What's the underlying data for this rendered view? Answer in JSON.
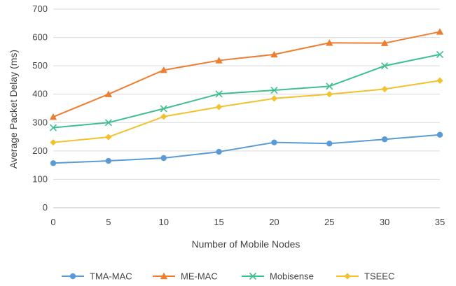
{
  "chart_data": {
    "type": "line",
    "xlabel": "Number  of Mobile Nodes",
    "ylabel": "Average Packet Delay (ms)",
    "x": [
      0,
      5,
      10,
      15,
      20,
      25,
      30,
      35
    ],
    "xlim": [
      0,
      35
    ],
    "ylim": [
      0,
      700
    ],
    "yticks": [
      0,
      100,
      200,
      300,
      400,
      500,
      600,
      700
    ],
    "grid": "horizontal",
    "legend_position": "bottom",
    "series": [
      {
        "name": "TMA-MAC",
        "color": "#5B9BD5",
        "marker": "circle",
        "values": [
          157,
          165,
          175,
          197,
          230,
          226,
          241,
          257
        ]
      },
      {
        "name": "ME-MAC",
        "color": "#ED7D31",
        "marker": "triangle",
        "values": [
          320,
          400,
          485,
          519,
          540,
          581,
          580,
          620
        ]
      },
      {
        "name": "Mobisense",
        "color": "#3DBF8E",
        "marker": "x",
        "values": [
          282,
          300,
          349,
          401,
          414,
          428,
          500,
          540
        ]
      },
      {
        "name": "TSEEC",
        "color": "#F2C12E",
        "marker": "diamond",
        "values": [
          230,
          249,
          321,
          355,
          385,
          400,
          418,
          448
        ]
      }
    ]
  }
}
